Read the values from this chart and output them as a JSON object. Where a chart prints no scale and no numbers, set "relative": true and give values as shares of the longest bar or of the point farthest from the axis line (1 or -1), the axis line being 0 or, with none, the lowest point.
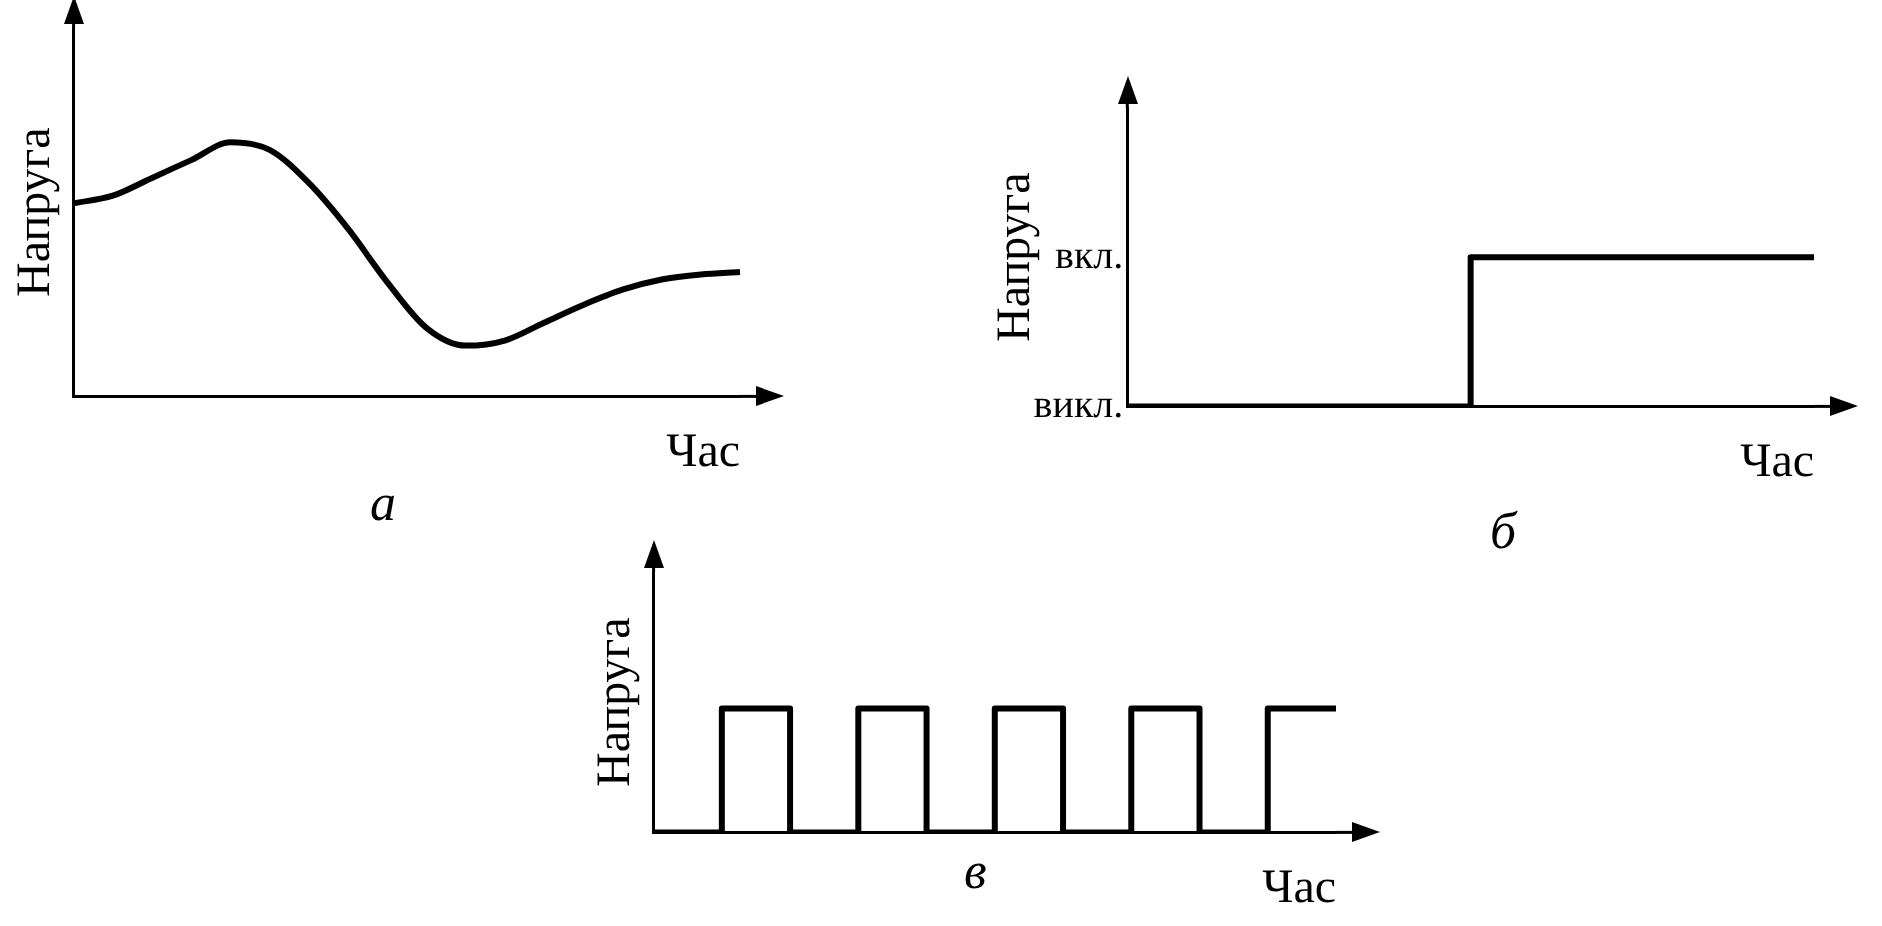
{
  "chart_data": [
    {
      "type": "line",
      "relative": true,
      "ylabel": "Напруга",
      "xlabel": "Час",
      "annotations": [
        "а"
      ],
      "color": "#000000",
      "categories": [
        null,
        null,
        null,
        null,
        null,
        null,
        null,
        null,
        null,
        null,
        null,
        null,
        null,
        null,
        null,
        null,
        null,
        null
      ],
      "values": [
        0.76,
        0.79,
        0.86,
        0.93,
        1,
        0.97,
        0.84,
        0.66,
        0.45,
        0.27,
        0.2,
        0.22,
        0.29,
        0.36,
        0.42,
        0.46,
        0.48,
        0.49
      ]
    },
    {
      "type": "step",
      "relative": true,
      "ylabel": "Напруга",
      "xlabel": "Час",
      "annotations": [
        "б",
        "викл.",
        "вкл."
      ],
      "color": "#000000",
      "categories": [
        null,
        null,
        null,
        null,
        null,
        null,
        null
      ],
      "values": [
        0,
        0,
        0,
        1,
        1,
        1,
        1
      ]
    },
    {
      "type": "step",
      "relative": true,
      "ylabel": "Напруга",
      "xlabel": "Час",
      "annotations": [
        "в"
      ],
      "color": "#000000",
      "categories": [
        null,
        null,
        null,
        null,
        null,
        null,
        null,
        null,
        null,
        null,
        null
      ],
      "values": [
        0,
        1,
        0,
        1,
        0,
        1,
        0,
        1,
        0,
        1,
        1
      ]
    }
  ]
}
